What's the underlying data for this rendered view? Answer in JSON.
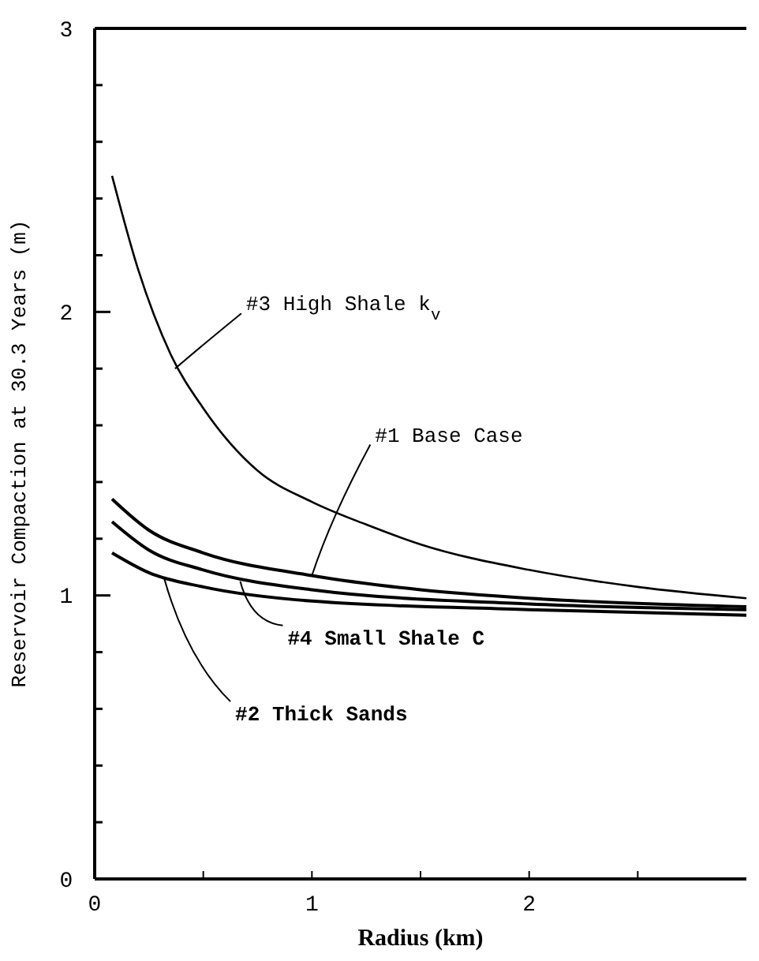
{
  "chart_data": {
    "type": "line",
    "xlabel": "Radius (km)",
    "ylabel": "Reservoir Compaction at 30.3 Years (m)",
    "xlim": [
      0,
      3
    ],
    "ylim": [
      0,
      3
    ],
    "xticks": [
      0,
      {
        "value": 0.5,
        "label": null
      },
      1,
      {
        "value": 1.5,
        "label": null
      },
      2,
      {
        "value": 2.5,
        "label": null
      }
    ],
    "yticks": [
      0,
      {
        "value": 0.2,
        "label": null
      },
      {
        "value": 0.4,
        "label": null
      },
      {
        "value": 0.6,
        "label": null
      },
      {
        "value": 0.8,
        "label": null
      },
      1,
      {
        "value": 1.2,
        "label": null
      },
      {
        "value": 1.4,
        "label": null
      },
      {
        "value": 1.6,
        "label": null
      },
      {
        "value": 1.8,
        "label": null
      },
      2,
      {
        "value": 2.2,
        "label": null
      },
      {
        "value": 2.4,
        "label": null
      },
      {
        "value": 2.6,
        "label": null
      },
      {
        "value": 2.8,
        "label": null
      },
      3
    ],
    "grid": false,
    "marker": "none",
    "line_style": "solid",
    "series": [
      {
        "color": "#000000",
        "x": [
          0.08,
          0.2,
          0.35,
          0.5,
          0.75,
          1.0,
          1.25,
          1.5,
          2.0,
          2.5,
          3.0
        ],
        "values": [
          2.48,
          2.15,
          1.85,
          1.66,
          1.44,
          1.33,
          1.25,
          1.18,
          1.09,
          1.03,
          0.99
        ]
      },
      {
        "color": "#000000",
        "x": [
          0.08,
          0.25,
          0.5,
          1.0,
          1.5,
          2.0,
          3.0
        ],
        "values": [
          1.34,
          1.23,
          1.15,
          1.07,
          1.02,
          0.99,
          0.96
        ]
      },
      {
        "color": "#000000",
        "x": [
          0.08,
          0.25,
          0.5,
          1.0,
          2.0,
          3.0
        ],
        "values": [
          1.26,
          1.16,
          1.09,
          1.02,
          0.97,
          0.95
        ]
      },
      {
        "color": "#000000",
        "x": [
          0.08,
          0.25,
          0.5,
          1.0,
          2.0,
          3.0
        ],
        "values": [
          1.15,
          1.08,
          1.03,
          0.98,
          0.95,
          0.93
        ]
      }
    ],
    "annotations": [
      {
        "text": "#3 High Shale k$_{v}$",
        "x": 0.37,
        "y": 1.8
      },
      {
        "text": "#1 Base Case",
        "x": 1.0,
        "y": 1.07
      },
      {
        "text": "#4 Small Shale C",
        "x": 0.67,
        "y": 1.05
      },
      {
        "text": "#2 Thick Sands",
        "x": 0.32,
        "y": 1.06
      }
    ]
  }
}
